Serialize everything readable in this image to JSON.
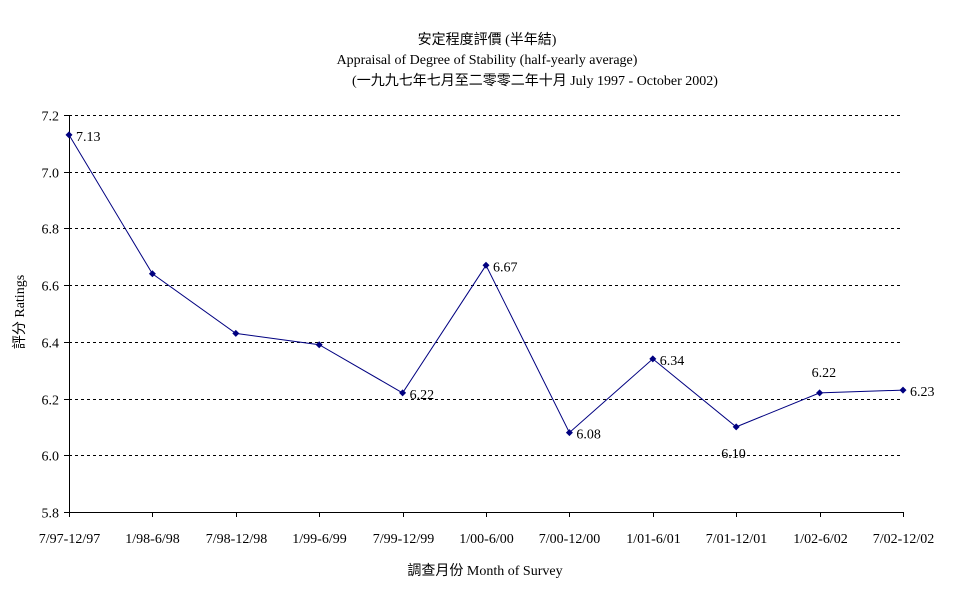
{
  "chart_data": {
    "type": "line",
    "title": "安定程度評價 (半年結)",
    "subtitle": "Appraisal of Degree of Stability (half-yearly average)",
    "subtitle2": "(一九九七年七月至二零零二年十月 July 1997 - October 2002)",
    "xlabel": "調查月份 Month of Survey",
    "ylabel": "評分 Ratings",
    "ylim": [
      5.8,
      7.2
    ],
    "yticks": [
      5.8,
      6.0,
      6.2,
      6.4,
      6.6,
      6.8,
      7.0,
      7.2
    ],
    "ytick_labels": [
      "5.8",
      "6.0",
      "6.2",
      "6.4",
      "6.6",
      "6.8",
      "7.0",
      "7.2"
    ],
    "grid": true,
    "legend": "none",
    "line_color": "#000080",
    "categories": [
      "7/97-12/97",
      "1/98-6/98",
      "7/98-12/98",
      "1/99-6/99",
      "7/99-12/99",
      "1/00-6/00",
      "7/00-12/00",
      "1/01-6/01",
      "7/01-12/01",
      "1/02-6/02",
      "7/02-12/02"
    ],
    "values": [
      7.13,
      6.64,
      6.43,
      6.39,
      6.22,
      6.67,
      6.08,
      6.34,
      6.1,
      6.22,
      6.23
    ],
    "data_labels": [
      {
        "index": 0,
        "text": "7.13"
      },
      {
        "index": 4,
        "text": "6.22"
      },
      {
        "index": 5,
        "text": "6.67"
      },
      {
        "index": 6,
        "text": "6.08"
      },
      {
        "index": 7,
        "text": "6.34"
      },
      {
        "index": 8,
        "text": "6.10"
      },
      {
        "index": 9,
        "text": "6.22"
      },
      {
        "index": 10,
        "text": "6.23"
      }
    ]
  }
}
